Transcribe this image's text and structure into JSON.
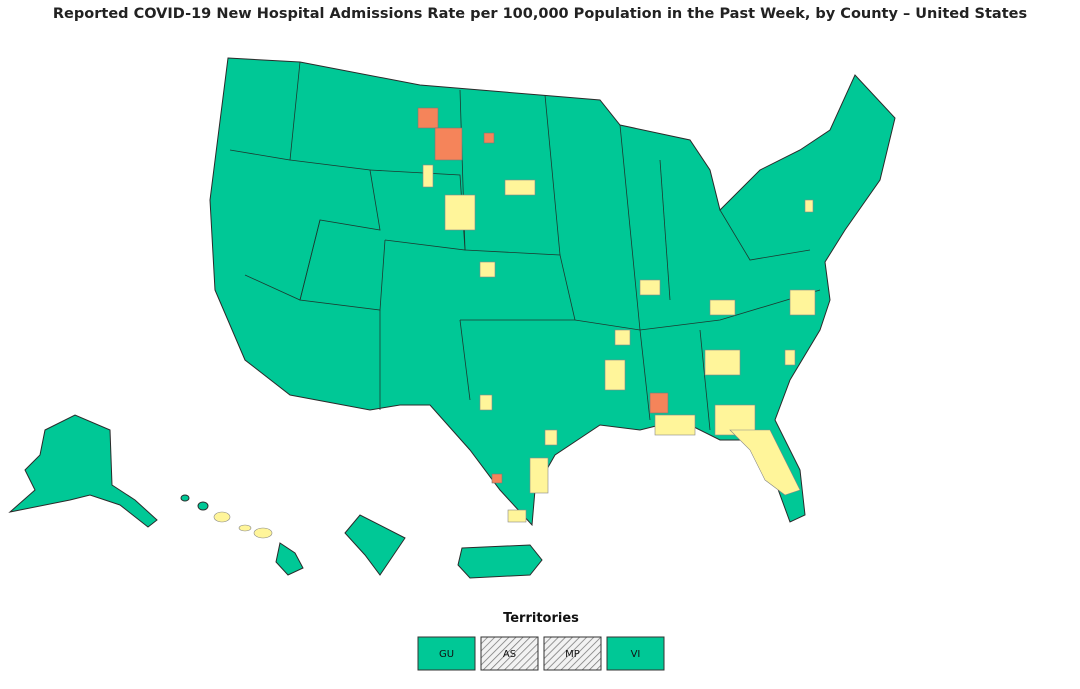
{
  "title": "Reported COVID-19 New Hospital Admissions Rate per 100,000 Population in the Past Week, by County – United States",
  "territories": {
    "title": "Territories",
    "items": [
      {
        "label": "GU",
        "fill": "#00c896"
      },
      {
        "label": "AS",
        "fill": "hatch"
      },
      {
        "label": "MP",
        "fill": "hatch"
      },
      {
        "label": "VI",
        "fill": "#00c896"
      }
    ]
  }
}
